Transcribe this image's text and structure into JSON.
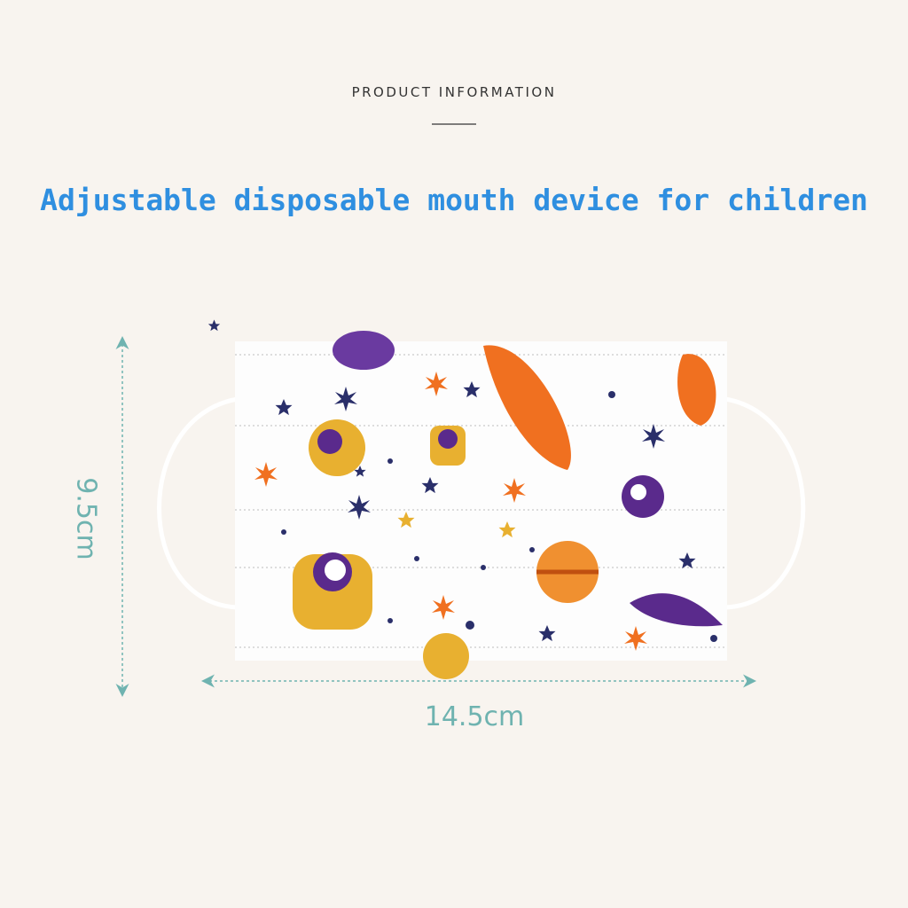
{
  "header": {
    "title": "PRODUCT INFORMATION"
  },
  "headline": "Adjustable disposable mouth device for children",
  "dimensions": {
    "height": "9.5cm",
    "width": "14.5cm"
  }
}
